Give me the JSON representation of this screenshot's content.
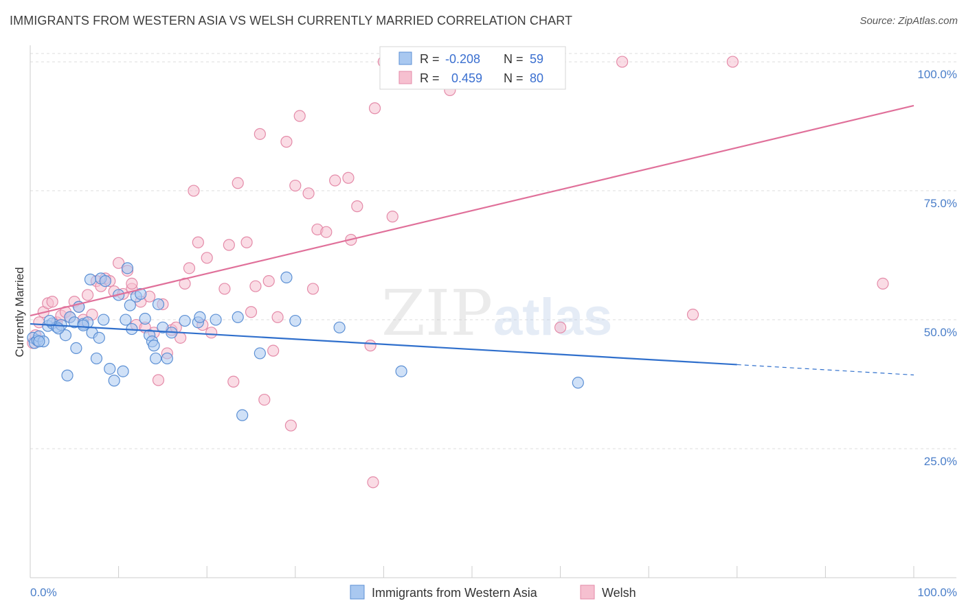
{
  "title": "IMMIGRANTS FROM WESTERN ASIA VS WELSH CURRENTLY MARRIED CORRELATION CHART",
  "source": "Source: ZipAtlas.com",
  "watermark": {
    "zip": "ZIP",
    "atlas": "atlas"
  },
  "colors": {
    "blue_fill": "#a9c8f0",
    "blue_stroke": "#5b8fd4",
    "blue_line": "#2f6fcc",
    "pink_fill": "#f6c0d0",
    "pink_stroke": "#e48aa8",
    "pink_line": "#e0709a",
    "axis_text": "#4a7ec9",
    "grid": "#dddddd"
  },
  "stats_box": {
    "rows": [
      {
        "r_label": "R =",
        "r_value": "-0.208",
        "n_label": "N =",
        "n_value": "59",
        "series": "blue"
      },
      {
        "r_label": "R =",
        "r_value": "0.459",
        "n_label": "N =",
        "n_value": "80",
        "series": "pink"
      }
    ]
  },
  "chart_data": {
    "type": "scatter",
    "ylabel": "Currently Married",
    "xlim": [
      0,
      100
    ],
    "ylim": [
      0,
      104
    ],
    "x_tick_labels": [
      "0.0%",
      "100.0%"
    ],
    "y_ticks": [
      25,
      50,
      75,
      100
    ],
    "y_tick_labels": [
      "25.0%",
      "50.0%",
      "75.0%",
      "100.0%"
    ],
    "grid": true,
    "legend_position": "bottom-center",
    "series": [
      {
        "name": "Immigrants from Western Asia",
        "color": "blue",
        "trend": {
          "x": [
            0,
            80,
            100
          ],
          "y": [
            49.2,
            41.3,
            39.3
          ],
          "dashed_from": 80
        },
        "points": [
          [
            0.3,
            46.5
          ],
          [
            0.5,
            45.5
          ],
          [
            0.8,
            46.0
          ],
          [
            1.0,
            46.8
          ],
          [
            1.5,
            45.8
          ],
          [
            2.0,
            48.8
          ],
          [
            2.5,
            49.3
          ],
          [
            3.0,
            48.6
          ],
          [
            3.5,
            49.0
          ],
          [
            4.0,
            47.0
          ],
          [
            4.5,
            50.5
          ],
          [
            5.0,
            49.5
          ],
          [
            5.2,
            44.5
          ],
          [
            5.5,
            52.5
          ],
          [
            6.0,
            49.2
          ],
          [
            6.5,
            49.5
          ],
          [
            6.8,
            57.8
          ],
          [
            7.0,
            47.5
          ],
          [
            7.5,
            42.5
          ],
          [
            7.8,
            46.5
          ],
          [
            8.0,
            58.0
          ],
          [
            8.3,
            50.0
          ],
          [
            8.5,
            57.5
          ],
          [
            9.0,
            40.5
          ],
          [
            9.5,
            38.2
          ],
          [
            10.0,
            54.8
          ],
          [
            10.5,
            40.0
          ],
          [
            10.8,
            50.0
          ],
          [
            11.0,
            60.0
          ],
          [
            11.3,
            52.8
          ],
          [
            11.5,
            48.2
          ],
          [
            12.0,
            54.5
          ],
          [
            12.5,
            55.0
          ],
          [
            13.0,
            50.2
          ],
          [
            13.5,
            47.0
          ],
          [
            13.8,
            45.8
          ],
          [
            14.0,
            45.0
          ],
          [
            14.2,
            42.5
          ],
          [
            14.5,
            53.0
          ],
          [
            15.0,
            48.5
          ],
          [
            15.5,
            42.5
          ],
          [
            16.0,
            47.5
          ],
          [
            17.5,
            49.8
          ],
          [
            19.0,
            49.5
          ],
          [
            19.2,
            50.5
          ],
          [
            21.0,
            50.0
          ],
          [
            23.5,
            50.5
          ],
          [
            24.0,
            31.5
          ],
          [
            26.0,
            43.5
          ],
          [
            29.0,
            58.2
          ],
          [
            30.0,
            49.8
          ],
          [
            35.0,
            48.5
          ],
          [
            42.0,
            40.0
          ],
          [
            62.0,
            37.8
          ],
          [
            1.0,
            45.8
          ],
          [
            2.2,
            49.8
          ],
          [
            3.2,
            48.3
          ],
          [
            4.2,
            39.2
          ],
          [
            6.0,
            48.9
          ]
        ]
      },
      {
        "name": "Welsh",
        "color": "pink",
        "trend": {
          "x": [
            0,
            100
          ],
          "y": [
            50.8,
            91.5
          ]
        },
        "points": [
          [
            0.3,
            45.5
          ],
          [
            0.6,
            47.0
          ],
          [
            1.0,
            49.5
          ],
          [
            1.5,
            51.5
          ],
          [
            2.0,
            53.2
          ],
          [
            2.5,
            53.5
          ],
          [
            3.0,
            49.5
          ],
          [
            3.5,
            50.8
          ],
          [
            4.0,
            51.5
          ],
          [
            4.5,
            50.5
          ],
          [
            5.0,
            53.5
          ],
          [
            5.5,
            52.5
          ],
          [
            6.0,
            50.0
          ],
          [
            6.5,
            54.8
          ],
          [
            7.0,
            51.0
          ],
          [
            7.5,
            57.5
          ],
          [
            8.0,
            56.5
          ],
          [
            8.5,
            58.0
          ],
          [
            9.0,
            57.5
          ],
          [
            9.5,
            55.5
          ],
          [
            10.0,
            61.0
          ],
          [
            10.5,
            55.0
          ],
          [
            11.0,
            59.5
          ],
          [
            11.5,
            56.0
          ],
          [
            12.0,
            49.0
          ],
          [
            12.5,
            53.5
          ],
          [
            13.0,
            48.5
          ],
          [
            13.5,
            54.5
          ],
          [
            14.0,
            47.5
          ],
          [
            14.5,
            38.3
          ],
          [
            15.0,
            53.0
          ],
          [
            15.5,
            43.5
          ],
          [
            16.0,
            48.0
          ],
          [
            16.5,
            48.5
          ],
          [
            17.0,
            46.5
          ],
          [
            17.5,
            57.0
          ],
          [
            18.0,
            60.0
          ],
          [
            18.5,
            75.0
          ],
          [
            19.0,
            65.0
          ],
          [
            19.5,
            49.0
          ],
          [
            20.0,
            62.0
          ],
          [
            20.5,
            47.5
          ],
          [
            22.0,
            56.0
          ],
          [
            22.5,
            64.5
          ],
          [
            23.0,
            38.0
          ],
          [
            23.5,
            76.5
          ],
          [
            24.5,
            65.0
          ],
          [
            25.0,
            51.5
          ],
          [
            25.5,
            56.5
          ],
          [
            26.0,
            86.0
          ],
          [
            26.5,
            34.5
          ],
          [
            27.0,
            57.5
          ],
          [
            27.5,
            44.0
          ],
          [
            28.0,
            50.5
          ],
          [
            29.0,
            84.5
          ],
          [
            29.5,
            29.5
          ],
          [
            30.0,
            76.0
          ],
          [
            30.5,
            89.5
          ],
          [
            31.5,
            74.5
          ],
          [
            32.0,
            56.0
          ],
          [
            32.5,
            67.5
          ],
          [
            33.5,
            67.0
          ],
          [
            34.5,
            77.0
          ],
          [
            36.0,
            77.5
          ],
          [
            36.3,
            65.5
          ],
          [
            37.0,
            72.0
          ],
          [
            38.5,
            45.0
          ],
          [
            38.8,
            18.5
          ],
          [
            39.0,
            91.0
          ],
          [
            40.0,
            100.0
          ],
          [
            41.0,
            70.0
          ],
          [
            47.5,
            94.5
          ],
          [
            47.0,
            100.0
          ],
          [
            54.0,
            100.0
          ],
          [
            60.0,
            48.5
          ],
          [
            67.0,
            100.0
          ],
          [
            75.0,
            51.0
          ],
          [
            79.5,
            100.0
          ],
          [
            96.5,
            57.0
          ],
          [
            11.5,
            57.0
          ]
        ]
      }
    ]
  }
}
